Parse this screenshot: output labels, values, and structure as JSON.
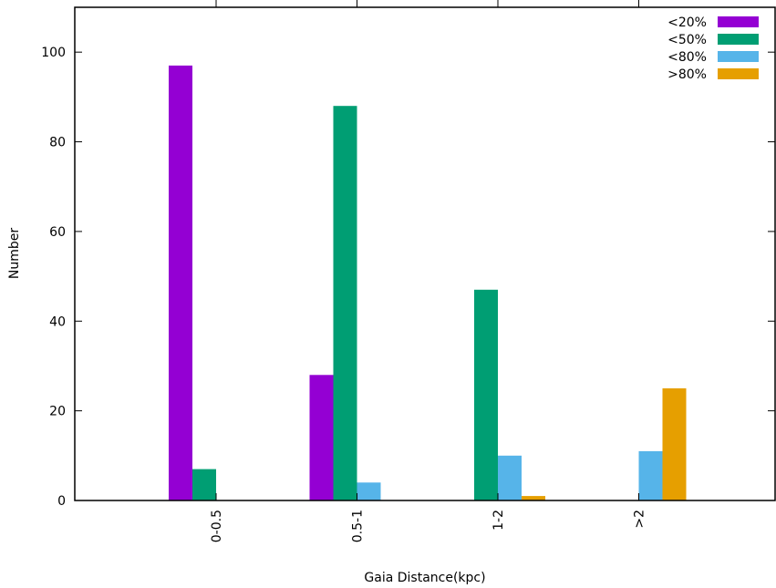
{
  "chart_data": {
    "type": "bar",
    "title": "",
    "xlabel": "Gaia Distance(kpc)",
    "ylabel": "Number",
    "categories": [
      "0-0.5",
      "0.5-1",
      "1-2",
      ">2"
    ],
    "ylim": [
      0,
      110
    ],
    "yticks": [
      0,
      20,
      40,
      60,
      80,
      100
    ],
    "grid": false,
    "legend_position": "top-right",
    "series": [
      {
        "name": "<20%",
        "color": "#9400d3",
        "values": [
          97,
          28,
          0,
          0
        ]
      },
      {
        "name": "<50%",
        "color": "#009e73",
        "values": [
          7,
          88,
          47,
          0
        ]
      },
      {
        "name": "<80%",
        "color": "#56b4e9",
        "values": [
          0,
          4,
          10,
          11
        ]
      },
      {
        "name": ">80%",
        "color": "#e69f00",
        "values": [
          0,
          0,
          1,
          25
        ]
      }
    ]
  }
}
